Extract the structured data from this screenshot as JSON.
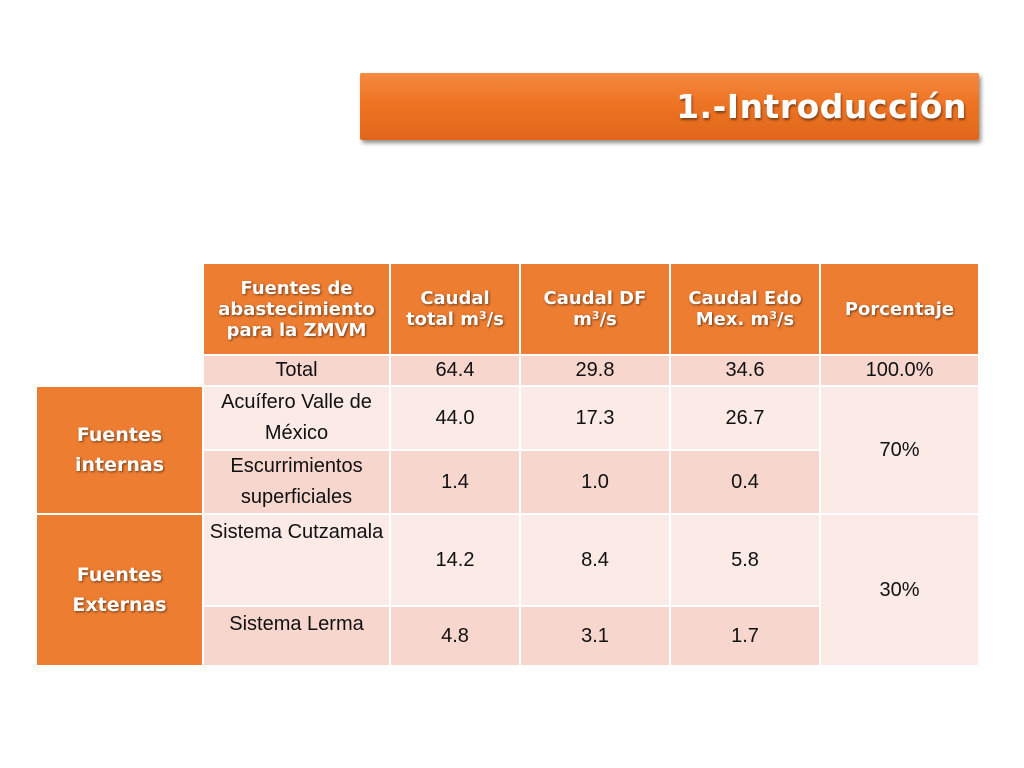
{
  "title": "1.-Introducción",
  "table": {
    "headers": {
      "fuentes": "Fuentes de abastecimiento para la ZMVM",
      "caudal_total": "Caudal total m",
      "caudal_df": "Caudal DF m",
      "caudal_edo": "Caudal Edo Mex. m",
      "unit_exp": "3",
      "unit_suffix": "/s",
      "porcentaje": "Porcentaje"
    },
    "total_row": {
      "label": "Total",
      "caudal_total": "64.4",
      "caudal_df": "29.8",
      "caudal_edo": "34.6",
      "porcentaje": "100.0%"
    },
    "groups": [
      {
        "name": "Fuentes internas",
        "porcentaje": "70%",
        "rows": [
          {
            "label": "Acuífero Valle de México",
            "caudal_total": "44.0",
            "caudal_df": "17.3",
            "caudal_edo": "26.7"
          },
          {
            "label": "Escurrimientos superficiales",
            "caudal_total": "1.4",
            "caudal_df": "1.0",
            "caudal_edo": "0.4"
          }
        ]
      },
      {
        "name": "Fuentes Externas",
        "porcentaje": "30%",
        "rows": [
          {
            "label": "Sistema Cutzamala",
            "caudal_total": "14.2",
            "caudal_df": "8.4",
            "caudal_edo": "5.8"
          },
          {
            "label": "Sistema Lerma",
            "caudal_total": "4.8",
            "caudal_df": "3.1",
            "caudal_edo": "1.7"
          }
        ]
      }
    ]
  },
  "colors": {
    "accent_orange": "#ed7d31",
    "row_dark": "#f7d6ce",
    "row_light": "#fbeae6"
  }
}
